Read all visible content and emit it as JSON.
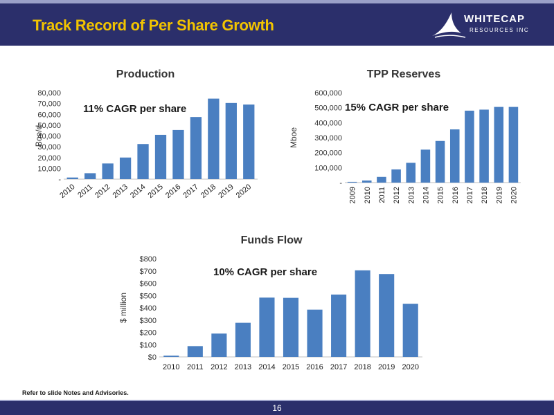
{
  "header": {
    "title": "Track Record of Per Share Growth",
    "logo_word": "WHITECAP",
    "logo_sub": "RESOURCES INC"
  },
  "footer": {
    "note": "Refer to slide Notes and Advisories.",
    "page_number": "16"
  },
  "colors": {
    "bar": "#4a7fc1",
    "header_bg": "#2b2f6b",
    "title_yellow": "#f2c400"
  },
  "chart_data": [
    {
      "id": "production",
      "type": "bar",
      "title": "Production",
      "annotation": "11% CAGR per share",
      "ylabel": "Boe/d",
      "xlabel": "",
      "categories": [
        "2010",
        "2011",
        "2012",
        "2013",
        "2014",
        "2015",
        "2016",
        "2017",
        "2018",
        "2019",
        "2020"
      ],
      "values": [
        1500,
        5500,
        14500,
        20000,
        32500,
        41000,
        45500,
        57500,
        74500,
        70500,
        69000
      ],
      "ylim": [
        0,
        80000
      ],
      "yticks": [
        "-",
        "10,000",
        "20,000",
        "30,000",
        "40,000",
        "50,000",
        "60,000",
        "70,000",
        "80,000"
      ],
      "grid": false
    },
    {
      "id": "reserves",
      "type": "bar",
      "title": "TPP Reserves",
      "annotation": "15% CAGR per share",
      "ylabel": "Mboe",
      "xlabel": "",
      "categories": [
        "2009",
        "2010",
        "2011",
        "2012",
        "2013",
        "2014",
        "2015",
        "2016",
        "2017",
        "2018",
        "2019",
        "2020"
      ],
      "values": [
        5000,
        14000,
        38000,
        88000,
        132000,
        220000,
        278000,
        355000,
        480000,
        487000,
        505000,
        505000
      ],
      "ylim": [
        0,
        600000
      ],
      "yticks": [
        "-",
        "100,000",
        "200,000",
        "300,000",
        "400,000",
        "500,000",
        "600,000"
      ],
      "grid": false
    },
    {
      "id": "funds",
      "type": "bar",
      "title": "Funds Flow",
      "annotation": "10% CAGR per share",
      "ylabel": "$ million",
      "xlabel": "",
      "categories": [
        "2010",
        "2011",
        "2012",
        "2013",
        "2014",
        "2015",
        "2016",
        "2017",
        "2018",
        "2019",
        "2020"
      ],
      "values": [
        10,
        88,
        190,
        278,
        483,
        481,
        385,
        508,
        705,
        675,
        433
      ],
      "ylim": [
        0,
        800
      ],
      "yticks": [
        "$0",
        "$100",
        "$200",
        "$300",
        "$400",
        "$500",
        "$600",
        "$700",
        "$800"
      ],
      "grid": false
    }
  ]
}
